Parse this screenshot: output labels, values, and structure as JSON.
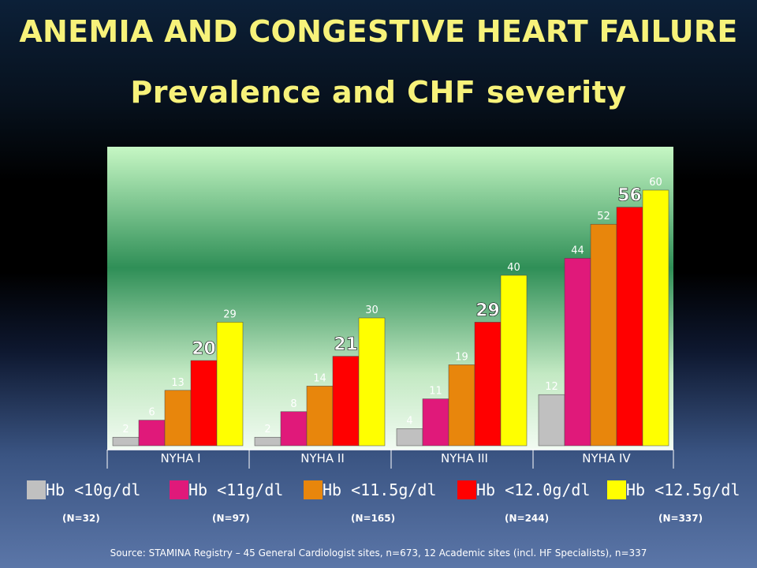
{
  "title": "ANEMIA AND CONGESTIVE HEART FAILURE",
  "subtitle": "Prevalence and CHF severity",
  "chart_data": {
    "type": "bar",
    "categories": [
      "NYHA I",
      "NYHA II",
      "NYHA III",
      "NYHA IV"
    ],
    "series": [
      {
        "name": "Hb <10g/dl",
        "color": "#c0c0c0",
        "values": [
          2,
          2,
          4,
          12
        ]
      },
      {
        "name": "Hb <11g/dl",
        "color": "#e0197a",
        "values": [
          6,
          8,
          11,
          44
        ]
      },
      {
        "name": "Hb <11.5g/dl",
        "color": "#e8860c",
        "values": [
          13,
          14,
          19,
          52
        ]
      },
      {
        "name": "Hb <12.0g/dl",
        "color": "#ff0000",
        "values": [
          20,
          21,
          29,
          56
        ]
      },
      {
        "name": "Hb <12.5g/dl",
        "color": "#ffff00",
        "values": [
          29,
          30,
          40,
          60
        ]
      }
    ],
    "highlight_series": "Hb <12.0g/dl",
    "ylim": [
      0,
      70
    ],
    "grid": false,
    "legend_placement": "bottom"
  },
  "legend_counts": [
    "(N=32)",
    "(N=97)",
    "(N=165)",
    "(N=244)",
    "(N=337)"
  ],
  "source": "Source: STAMINA Registry – 45 General Cardiologist sites, n=673, 12 Academic sites (incl. HF Specialists), n=337"
}
